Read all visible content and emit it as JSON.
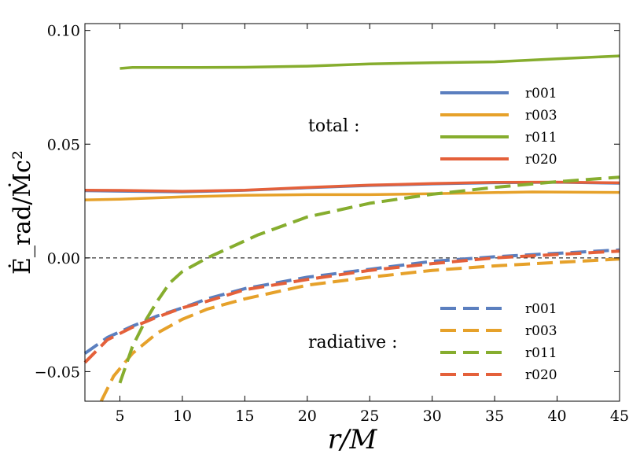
{
  "chart_data": {
    "type": "line",
    "xlabel": "r/M",
    "ylabel": "Ė_rad/Ṁc²",
    "xlim": [
      2.2,
      45
    ],
    "ylim": [
      -0.063,
      0.103
    ],
    "xticks": [
      5,
      10,
      15,
      20,
      25,
      30,
      35,
      40,
      45
    ],
    "xtick_labels": [
      "5",
      "10",
      "15",
      "20",
      "25",
      "30",
      "35",
      "40",
      "45"
    ],
    "yticks": [
      -0.05,
      0.0,
      0.05,
      0.1
    ],
    "ytick_labels": [
      "−0.05",
      "0.00",
      "0.05",
      "0.10"
    ],
    "zero_line": true,
    "annotations": {
      "total": "total :",
      "radiative": "radiative :"
    },
    "series": [
      {
        "name": "r001",
        "group": "total",
        "style": "solid",
        "color": "#5b7fbf",
        "x": [
          2.2,
          5,
          10,
          15,
          20,
          25,
          30,
          35,
          40,
          45
        ],
        "y": [
          0.0295,
          0.0293,
          0.029,
          0.0297,
          0.0308,
          0.0318,
          0.0325,
          0.033,
          0.0332,
          0.0328
        ]
      },
      {
        "name": "r003",
        "group": "total",
        "style": "solid",
        "color": "#e6a12a",
        "x": [
          2.2,
          5,
          10,
          15,
          20,
          25,
          30,
          35,
          38,
          45
        ],
        "y": [
          0.0255,
          0.0258,
          0.0268,
          0.0275,
          0.0278,
          0.0278,
          0.0282,
          0.0287,
          0.029,
          0.0288
        ]
      },
      {
        "name": "r011",
        "group": "total",
        "style": "solid",
        "color": "#86ad2e",
        "x": [
          5,
          6,
          10,
          15,
          20,
          25,
          30,
          35,
          40,
          45
        ],
        "y": [
          0.0833,
          0.0837,
          0.0837,
          0.0838,
          0.0843,
          0.0853,
          0.0858,
          0.0862,
          0.0875,
          0.0888
        ]
      },
      {
        "name": "r020",
        "group": "total",
        "style": "solid",
        "color": "#e4603a",
        "x": [
          2.2,
          5,
          10,
          15,
          20,
          25,
          30,
          35,
          40,
          45
        ],
        "y": [
          0.0298,
          0.0297,
          0.0293,
          0.0298,
          0.031,
          0.032,
          0.0327,
          0.0332,
          0.0333,
          0.033
        ]
      },
      {
        "name": "r001",
        "group": "radiative",
        "style": "dashed",
        "color": "#5b7fbf",
        "x": [
          2.2,
          4,
          6,
          8,
          10,
          12,
          15,
          20,
          25,
          30,
          35,
          40,
          45
        ],
        "y": [
          -0.042,
          -0.035,
          -0.03,
          -0.0255,
          -0.022,
          -0.018,
          -0.0135,
          -0.0085,
          -0.005,
          -0.0015,
          0.0005,
          0.002,
          0.0035
        ]
      },
      {
        "name": "r003",
        "group": "radiative",
        "style": "dashed",
        "color": "#e6a12a",
        "x": [
          3.5,
          4.5,
          6,
          8,
          10,
          12,
          15,
          20,
          25,
          30,
          35,
          40,
          45
        ],
        "y": [
          -0.063,
          -0.052,
          -0.042,
          -0.033,
          -0.027,
          -0.0225,
          -0.018,
          -0.012,
          -0.0085,
          -0.0055,
          -0.0035,
          -0.002,
          -0.0005
        ]
      },
      {
        "name": "r011",
        "group": "radiative",
        "style": "dashed",
        "color": "#86ad2e",
        "x": [
          5,
          6,
          7,
          8,
          9,
          10,
          12,
          14,
          16,
          20,
          25,
          30,
          35,
          40,
          45
        ],
        "y": [
          -0.055,
          -0.039,
          -0.028,
          -0.019,
          -0.011,
          -0.006,
          0.0,
          0.005,
          0.01,
          0.018,
          0.024,
          0.028,
          0.031,
          0.0335,
          0.0355
        ]
      },
      {
        "name": "r020",
        "group": "radiative",
        "style": "dashed",
        "color": "#e4603a",
        "x": [
          2.2,
          4,
          6,
          8,
          10,
          12,
          15,
          20,
          25,
          30,
          35,
          40,
          45
        ],
        "y": [
          -0.046,
          -0.036,
          -0.0305,
          -0.026,
          -0.022,
          -0.019,
          -0.014,
          -0.0095,
          -0.0055,
          -0.0025,
          0.0,
          0.0015,
          0.003
        ]
      }
    ]
  }
}
